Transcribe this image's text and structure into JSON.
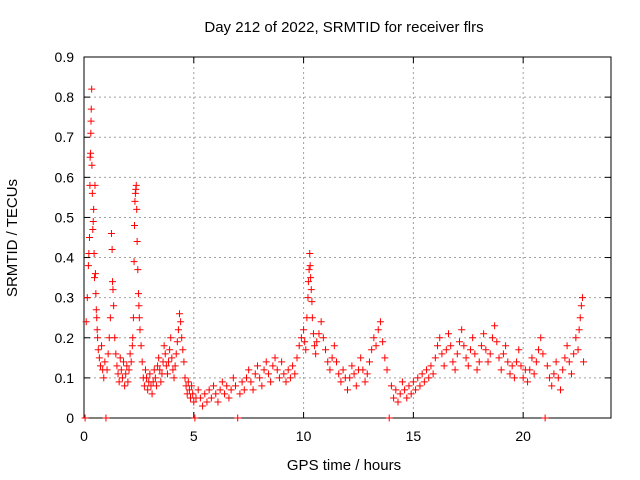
{
  "chart_data": {
    "type": "scatter",
    "title": "Day 212 of 2022, SRMTID for receiver flrs",
    "xlabel": "GPS time / hours",
    "ylabel": "SRMTID / TECUs",
    "xlim": [
      0,
      24
    ],
    "ylim": [
      0,
      0.9
    ],
    "xticks": [
      0,
      5,
      10,
      15,
      20
    ],
    "xtick_labels": [
      "0",
      "5",
      "10",
      "15",
      "20"
    ],
    "yticks": [
      0,
      0.1,
      0.2,
      0.3,
      0.4,
      0.5,
      0.6,
      0.7,
      0.8,
      0.9
    ],
    "ytick_labels": [
      "0",
      "0.1",
      "0.2",
      "0.3",
      "0.4",
      "0.5",
      "0.6",
      "0.7",
      "0.8",
      "0.9"
    ],
    "grid": true,
    "marker": "plus",
    "color": "#ff0000",
    "series": [
      {
        "name": "SRMTID",
        "points": [
          [
            0.05,
            0.0
          ],
          [
            0.1,
            0.24
          ],
          [
            0.15,
            0.3
          ],
          [
            0.2,
            0.38
          ],
          [
            0.22,
            0.41
          ],
          [
            0.25,
            0.45
          ],
          [
            0.27,
            0.58
          ],
          [
            0.28,
            0.65
          ],
          [
            0.3,
            0.66
          ],
          [
            0.31,
            0.71
          ],
          [
            0.32,
            0.74
          ],
          [
            0.33,
            0.77
          ],
          [
            0.35,
            0.82
          ],
          [
            0.36,
            0.63
          ],
          [
            0.38,
            0.56
          ],
          [
            0.4,
            0.47
          ],
          [
            0.42,
            0.49
          ],
          [
            0.44,
            0.52
          ],
          [
            0.46,
            0.41
          ],
          [
            0.48,
            0.35
          ],
          [
            0.5,
            0.58
          ],
          [
            0.52,
            0.36
          ],
          [
            0.54,
            0.31
          ],
          [
            0.56,
            0.27
          ],
          [
            0.58,
            0.25
          ],
          [
            0.6,
            0.22
          ],
          [
            0.62,
            0.2
          ],
          [
            0.65,
            0.17
          ],
          [
            0.7,
            0.15
          ],
          [
            0.75,
            0.13
          ],
          [
            0.8,
            0.18
          ],
          [
            0.85,
            0.12
          ],
          [
            0.9,
            0.1
          ],
          [
            0.95,
            0.14
          ],
          [
            1.0,
            0.0
          ],
          [
            1.05,
            0.12
          ],
          [
            1.1,
            0.16
          ],
          [
            1.15,
            0.2
          ],
          [
            1.2,
            0.25
          ],
          [
            1.25,
            0.46
          ],
          [
            1.28,
            0.42
          ],
          [
            1.3,
            0.34
          ],
          [
            1.32,
            0.32
          ],
          [
            1.35,
            0.28
          ],
          [
            1.4,
            0.2
          ],
          [
            1.45,
            0.16
          ],
          [
            1.5,
            0.13
          ],
          [
            1.55,
            0.11
          ],
          [
            1.6,
            0.09
          ],
          [
            1.65,
            0.15
          ],
          [
            1.7,
            0.12
          ],
          [
            1.75,
            0.1
          ],
          [
            1.8,
            0.14
          ],
          [
            1.85,
            0.08
          ],
          [
            1.9,
            0.11
          ],
          [
            1.95,
            0.13
          ],
          [
            2.0,
            0.09
          ],
          [
            2.05,
            0.12
          ],
          [
            2.1,
            0.16
          ],
          [
            2.15,
            0.14
          ],
          [
            2.2,
            0.18
          ],
          [
            2.22,
            0.2
          ],
          [
            2.25,
            0.25
          ],
          [
            2.28,
            0.39
          ],
          [
            2.3,
            0.48
          ],
          [
            2.32,
            0.54
          ],
          [
            2.34,
            0.56
          ],
          [
            2.36,
            0.57
          ],
          [
            2.38,
            0.58
          ],
          [
            2.4,
            0.52
          ],
          [
            2.42,
            0.44
          ],
          [
            2.45,
            0.37
          ],
          [
            2.48,
            0.31
          ],
          [
            2.5,
            0.28
          ],
          [
            2.52,
            0.25
          ],
          [
            2.55,
            0.22
          ],
          [
            2.6,
            0.18
          ],
          [
            2.65,
            0.14
          ],
          [
            2.7,
            0.1
          ],
          [
            2.75,
            0.08
          ],
          [
            2.8,
            0.12
          ],
          [
            2.85,
            0.1
          ],
          [
            2.9,
            0.07
          ],
          [
            2.95,
            0.09
          ],
          [
            3.0,
            0.11
          ],
          [
            3.05,
            0.08
          ],
          [
            3.1,
            0.06
          ],
          [
            3.15,
            0.09
          ],
          [
            3.2,
            0.12
          ],
          [
            3.25,
            0.1
          ],
          [
            3.3,
            0.08
          ],
          [
            3.35,
            0.13
          ],
          [
            3.4,
            0.15
          ],
          [
            3.45,
            0.12
          ],
          [
            3.5,
            0.09
          ],
          [
            3.55,
            0.11
          ],
          [
            3.6,
            0.14
          ],
          [
            3.65,
            0.18
          ],
          [
            3.7,
            0.16
          ],
          [
            3.75,
            0.13
          ],
          [
            3.8,
            0.11
          ],
          [
            3.85,
            0.14
          ],
          [
            3.9,
            0.17
          ],
          [
            3.95,
            0.2
          ],
          [
            4.0,
            0.15
          ],
          [
            4.05,
            0.12
          ],
          [
            4.1,
            0.1
          ],
          [
            4.15,
            0.13
          ],
          [
            4.2,
            0.16
          ],
          [
            4.25,
            0.19
          ],
          [
            4.3,
            0.22
          ],
          [
            4.35,
            0.26
          ],
          [
            4.4,
            0.24
          ],
          [
            4.45,
            0.2
          ],
          [
            4.5,
            0.17
          ],
          [
            4.55,
            0.14
          ],
          [
            4.6,
            0.1
          ],
          [
            4.65,
            0.08
          ],
          [
            4.7,
            0.06
          ],
          [
            4.75,
            0.09
          ],
          [
            4.8,
            0.07
          ],
          [
            4.85,
            0.05
          ],
          [
            4.9,
            0.08
          ],
          [
            4.95,
            0.06
          ],
          [
            5.0,
            0.04
          ],
          [
            5.05,
            0.0
          ],
          [
            5.1,
            0.05
          ],
          [
            5.2,
            0.07
          ],
          [
            5.3,
            0.05
          ],
          [
            5.4,
            0.03
          ],
          [
            5.5,
            0.06
          ],
          [
            5.6,
            0.04
          ],
          [
            5.7,
            0.07
          ],
          [
            5.8,
            0.05
          ],
          [
            5.9,
            0.08
          ],
          [
            6.0,
            0.06
          ],
          [
            6.1,
            0.04
          ],
          [
            6.2,
            0.07
          ],
          [
            6.3,
            0.09
          ],
          [
            6.4,
            0.06
          ],
          [
            6.5,
            0.08
          ],
          [
            6.6,
            0.05
          ],
          [
            6.7,
            0.07
          ],
          [
            6.8,
            0.1
          ],
          [
            6.9,
            0.08
          ],
          [
            7.0,
            0.0
          ],
          [
            7.1,
            0.06
          ],
          [
            7.2,
            0.09
          ],
          [
            7.3,
            0.07
          ],
          [
            7.4,
            0.1
          ],
          [
            7.5,
            0.12
          ],
          [
            7.6,
            0.09
          ],
          [
            7.7,
            0.07
          ],
          [
            7.8,
            0.11
          ],
          [
            7.9,
            0.13
          ],
          [
            8.0,
            0.1
          ],
          [
            8.1,
            0.08
          ],
          [
            8.2,
            0.12
          ],
          [
            8.3,
            0.14
          ],
          [
            8.4,
            0.11
          ],
          [
            8.5,
            0.09
          ],
          [
            8.6,
            0.13
          ],
          [
            8.7,
            0.15
          ],
          [
            8.8,
            0.12
          ],
          [
            8.9,
            0.1
          ],
          [
            9.0,
            0.14
          ],
          [
            9.1,
            0.11
          ],
          [
            9.2,
            0.09
          ],
          [
            9.3,
            0.12
          ],
          [
            9.4,
            0.1
          ],
          [
            9.5,
            0.13
          ],
          [
            9.6,
            0.11
          ],
          [
            9.7,
            0.15
          ],
          [
            9.8,
            0.18
          ],
          [
            9.9,
            0.2
          ],
          [
            10.0,
            0.22
          ],
          [
            10.05,
            0.19
          ],
          [
            10.1,
            0.17
          ],
          [
            10.15,
            0.25
          ],
          [
            10.2,
            0.3
          ],
          [
            10.22,
            0.34
          ],
          [
            10.25,
            0.37
          ],
          [
            10.28,
            0.41
          ],
          [
            10.3,
            0.38
          ],
          [
            10.32,
            0.35
          ],
          [
            10.35,
            0.32
          ],
          [
            10.38,
            0.29
          ],
          [
            10.4,
            0.25
          ],
          [
            10.45,
            0.21
          ],
          [
            10.5,
            0.18
          ],
          [
            10.55,
            0.16
          ],
          [
            10.6,
            0.19
          ],
          [
            10.7,
            0.21
          ],
          [
            10.8,
            0.24
          ],
          [
            10.9,
            0.2
          ],
          [
            11.0,
            0.17
          ],
          [
            11.1,
            0.14
          ],
          [
            11.2,
            0.12
          ],
          [
            11.3,
            0.15
          ],
          [
            11.4,
            0.18
          ],
          [
            11.5,
            0.14
          ],
          [
            11.6,
            0.11
          ],
          [
            11.7,
            0.09
          ],
          [
            11.8,
            0.12
          ],
          [
            11.9,
            0.1
          ],
          [
            12.0,
            0.07
          ],
          [
            12.1,
            0.1
          ],
          [
            12.2,
            0.13
          ],
          [
            12.3,
            0.11
          ],
          [
            12.4,
            0.08
          ],
          [
            12.5,
            0.12
          ],
          [
            12.6,
            0.15
          ],
          [
            12.7,
            0.12
          ],
          [
            12.8,
            0.09
          ],
          [
            12.9,
            0.11
          ],
          [
            13.0,
            0.14
          ],
          [
            13.1,
            0.17
          ],
          [
            13.2,
            0.2
          ],
          [
            13.3,
            0.18
          ],
          [
            13.4,
            0.22
          ],
          [
            13.5,
            0.24
          ],
          [
            13.6,
            0.19
          ],
          [
            13.7,
            0.15
          ],
          [
            13.8,
            0.12
          ],
          [
            13.9,
            0.0
          ],
          [
            14.0,
            0.08
          ],
          [
            14.1,
            0.05
          ],
          [
            14.2,
            0.07
          ],
          [
            14.3,
            0.04
          ],
          [
            14.4,
            0.06
          ],
          [
            14.5,
            0.09
          ],
          [
            14.6,
            0.07
          ],
          [
            14.7,
            0.05
          ],
          [
            14.8,
            0.08
          ],
          [
            14.9,
            0.06
          ],
          [
            15.0,
            0.09
          ],
          [
            15.1,
            0.07
          ],
          [
            15.2,
            0.1
          ],
          [
            15.3,
            0.08
          ],
          [
            15.4,
            0.11
          ],
          [
            15.5,
            0.09
          ],
          [
            15.6,
            0.12
          ],
          [
            15.7,
            0.1
          ],
          [
            15.8,
            0.13
          ],
          [
            15.9,
            0.11
          ],
          [
            16.0,
            0.15
          ],
          [
            16.1,
            0.18
          ],
          [
            16.2,
            0.2
          ],
          [
            16.3,
            0.16
          ],
          [
            16.4,
            0.13
          ],
          [
            16.5,
            0.17
          ],
          [
            16.6,
            0.21
          ],
          [
            16.7,
            0.18
          ],
          [
            16.8,
            0.14
          ],
          [
            16.9,
            0.12
          ],
          [
            17.0,
            0.16
          ],
          [
            17.1,
            0.19
          ],
          [
            17.2,
            0.22
          ],
          [
            17.3,
            0.18
          ],
          [
            17.4,
            0.15
          ],
          [
            17.5,
            0.13
          ],
          [
            17.6,
            0.17
          ],
          [
            17.7,
            0.2
          ],
          [
            17.8,
            0.16
          ],
          [
            17.9,
            0.12
          ],
          [
            18.0,
            0.14
          ],
          [
            18.1,
            0.18
          ],
          [
            18.2,
            0.21
          ],
          [
            18.3,
            0.17
          ],
          [
            18.4,
            0.14
          ],
          [
            18.5,
            0.16
          ],
          [
            18.6,
            0.2
          ],
          [
            18.7,
            0.23
          ],
          [
            18.8,
            0.19
          ],
          [
            18.9,
            0.15
          ],
          [
            19.0,
            0.12
          ],
          [
            19.1,
            0.16
          ],
          [
            19.2,
            0.18
          ],
          [
            19.3,
            0.14
          ],
          [
            19.4,
            0.11
          ],
          [
            19.5,
            0.13
          ],
          [
            19.6,
            0.1
          ],
          [
            19.7,
            0.14
          ],
          [
            19.8,
            0.17
          ],
          [
            19.9,
            0.13
          ],
          [
            20.0,
            0.1
          ],
          [
            20.1,
            0.12
          ],
          [
            20.2,
            0.09
          ],
          [
            20.3,
            0.12
          ],
          [
            20.4,
            0.15
          ],
          [
            20.5,
            0.11
          ],
          [
            20.6,
            0.14
          ],
          [
            20.7,
            0.17
          ],
          [
            20.8,
            0.2
          ],
          [
            20.9,
            0.16
          ],
          [
            21.0,
            0.0
          ],
          [
            21.1,
            0.13
          ],
          [
            21.2,
            0.1
          ],
          [
            21.3,
            0.08
          ],
          [
            21.4,
            0.11
          ],
          [
            21.5,
            0.14
          ],
          [
            21.6,
            0.1
          ],
          [
            21.7,
            0.07
          ],
          [
            21.8,
            0.12
          ],
          [
            21.9,
            0.15
          ],
          [
            22.0,
            0.18
          ],
          [
            22.1,
            0.14
          ],
          [
            22.2,
            0.11
          ],
          [
            22.3,
            0.16
          ],
          [
            22.4,
            0.2
          ],
          [
            22.5,
            0.17
          ],
          [
            22.55,
            0.22
          ],
          [
            22.6,
            0.25
          ],
          [
            22.65,
            0.28
          ],
          [
            22.7,
            0.3
          ],
          [
            22.75,
            0.14
          ]
        ]
      }
    ]
  }
}
